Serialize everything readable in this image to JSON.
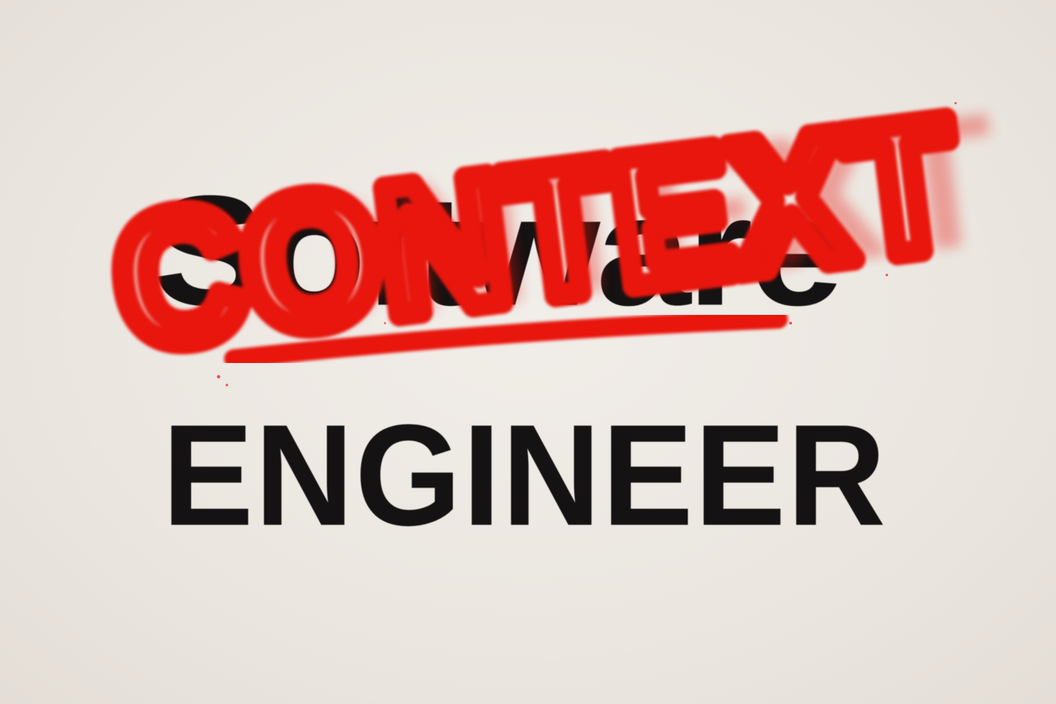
{
  "wall": {
    "black_line_1": "Software",
    "black_line_2": "ENGINEER"
  },
  "graffiti": {
    "text": "CONTEXT",
    "color": "#e8130f"
  },
  "colors": {
    "wall": "#ece7e1",
    "stencil": "#141212",
    "spray": "#e8130f"
  }
}
